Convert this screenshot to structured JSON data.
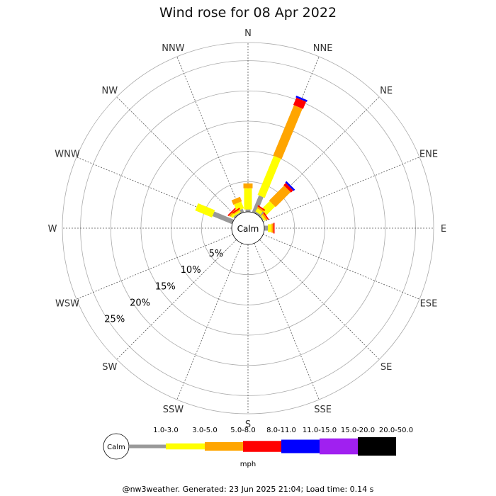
{
  "chart_data": {
    "type": "wind-rose",
    "title": "Wind rose for 08 Apr 2022",
    "calm_label": "Calm",
    "directions": [
      "N",
      "NNE",
      "NE",
      "ENE",
      "E",
      "ESE",
      "SE",
      "SSE",
      "S",
      "SSW",
      "SW",
      "WSW",
      "W",
      "WNW",
      "NW",
      "NNW"
    ],
    "rings": [
      "5%",
      "10%",
      "15%",
      "20%",
      "25%"
    ],
    "ring_values": [
      5,
      10,
      15,
      20,
      25
    ],
    "r_max_percent": 28,
    "speed_unit": "mph",
    "speed_bins": [
      {
        "label": "1.0-3.0",
        "color": "#999999"
      },
      {
        "label": "3.0-5.0",
        "color": "#ffff00"
      },
      {
        "label": "5.0-8.0",
        "color": "#ffa500"
      },
      {
        "label": "8.0-11.0",
        "color": "#ff0000"
      },
      {
        "label": "11.0-15.0",
        "color": "#0000ff"
      },
      {
        "label": "15.0-20.0",
        "color": "#a020f0"
      },
      {
        "label": "20.0-50.0",
        "color": "#000000"
      }
    ],
    "values_percent": {
      "N": [
        0.4,
        3.5,
        0.8,
        0,
        0,
        0,
        0
      ],
      "NNE": [
        3.0,
        7.0,
        9.0,
        1.3,
        0.3,
        0,
        0
      ],
      "NE": [
        1.0,
        2.0,
        3.5,
        0.5,
        0.3,
        0,
        0
      ],
      "ENE": [
        0,
        0,
        0,
        0,
        0,
        0,
        0
      ],
      "E": [
        0.6,
        0.6,
        0.3,
        0.2,
        0,
        0,
        0
      ],
      "ESE": [
        0,
        0,
        0,
        0,
        0,
        0,
        0
      ],
      "SE": [
        0,
        0,
        0,
        0,
        0,
        0,
        0
      ],
      "SSE": [
        0,
        0,
        0,
        0,
        0,
        0,
        0
      ],
      "S": [
        0,
        0,
        0,
        0,
        0,
        0,
        0
      ],
      "SSW": [
        0,
        0,
        0,
        0,
        0,
        0,
        0
      ],
      "SW": [
        0,
        0,
        0,
        0,
        0,
        0,
        0
      ],
      "WSW": [
        0,
        0,
        0,
        0,
        0,
        0,
        0
      ],
      "W": [
        0,
        0,
        0,
        0,
        0,
        0,
        0
      ],
      "WNW": [
        3.5,
        3.0,
        0,
        0,
        0,
        0,
        0
      ],
      "NW": [
        0.3,
        0.4,
        0.3,
        0.2,
        0,
        0,
        0
      ],
      "NNW": [
        0.6,
        1.2,
        0.8,
        0,
        0,
        0,
        0
      ]
    },
    "secondary_stubs_percent": {
      "NNE": [
        0.3,
        0.6,
        0.3,
        0.2,
        0,
        0,
        0
      ],
      "NE": [
        0.2,
        0.3,
        0.3,
        0.2,
        0,
        0,
        0
      ],
      "NW": [
        0.2,
        0.3,
        0.2,
        0.2,
        0,
        0,
        0
      ]
    }
  },
  "footer": "@nw3weather. Generated: 23 Jun 2025 21:04; Load time: 0.14 s"
}
